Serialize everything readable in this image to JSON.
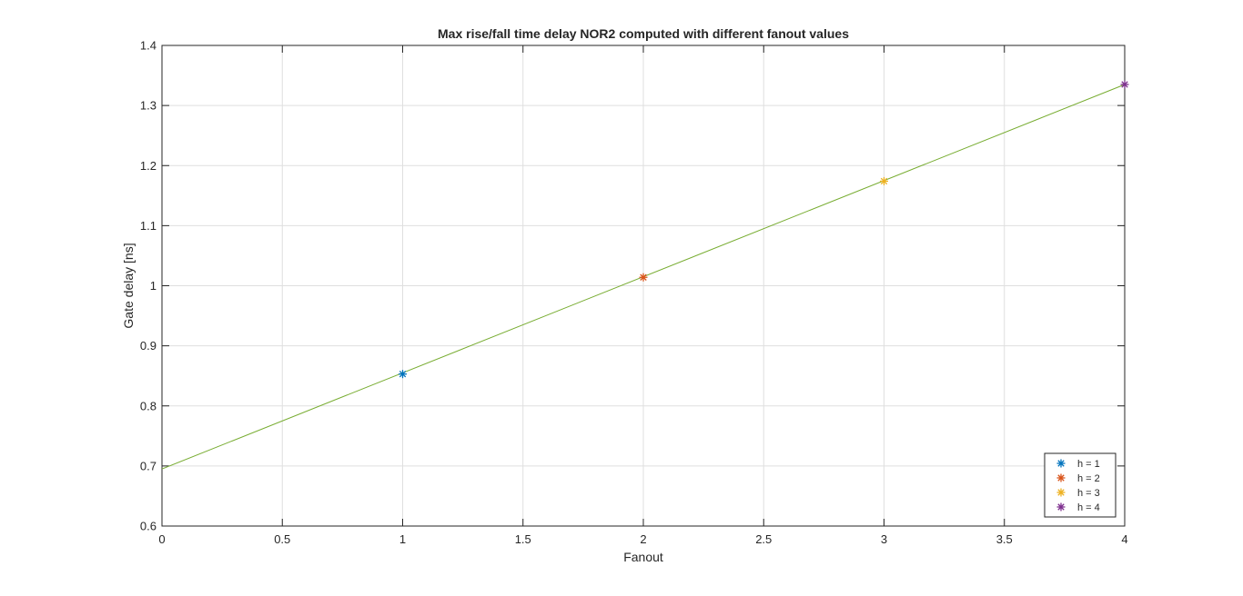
{
  "chart_data": {
    "type": "line",
    "title": "Max rise/fall time delay NOR2 computed with different fanout values",
    "xlabel": "Fanout",
    "ylabel": "Gate delay [ns]",
    "xlim": [
      0,
      4
    ],
    "ylim": [
      0.6,
      1.4
    ],
    "xticks": [
      0,
      0.5,
      1,
      1.5,
      2,
      2.5,
      3,
      3.5,
      4
    ],
    "xtick_labels": [
      "0",
      "0.5",
      "1",
      "1.5",
      "2",
      "2.5",
      "3",
      "3.5",
      "4"
    ],
    "yticks": [
      0.6,
      0.7,
      0.8,
      0.9,
      1.0,
      1.1,
      1.2,
      1.3,
      1.4
    ],
    "ytick_labels": [
      "0.6",
      "0.7",
      "0.8",
      "0.9",
      "1",
      "1.1",
      "1.2",
      "1.3",
      "1.4"
    ],
    "grid": true,
    "legend_position": "bottom-right",
    "fit_line": {
      "x": [
        0,
        4
      ],
      "y": [
        0.695,
        1.335
      ],
      "color": "#77AC30"
    },
    "series": [
      {
        "name": "h = 1",
        "marker": "asterisk",
        "color": "#0072BD",
        "x": [
          1
        ],
        "y": [
          0.853
        ]
      },
      {
        "name": "h = 2",
        "marker": "asterisk",
        "color": "#D95319",
        "x": [
          2
        ],
        "y": [
          1.014
        ]
      },
      {
        "name": "h = 3",
        "marker": "asterisk",
        "color": "#EDB120",
        "x": [
          3
        ],
        "y": [
          1.174
        ]
      },
      {
        "name": "h = 4",
        "marker": "asterisk",
        "color": "#7E2F8E",
        "x": [
          4
        ],
        "y": [
          1.335
        ]
      }
    ]
  }
}
